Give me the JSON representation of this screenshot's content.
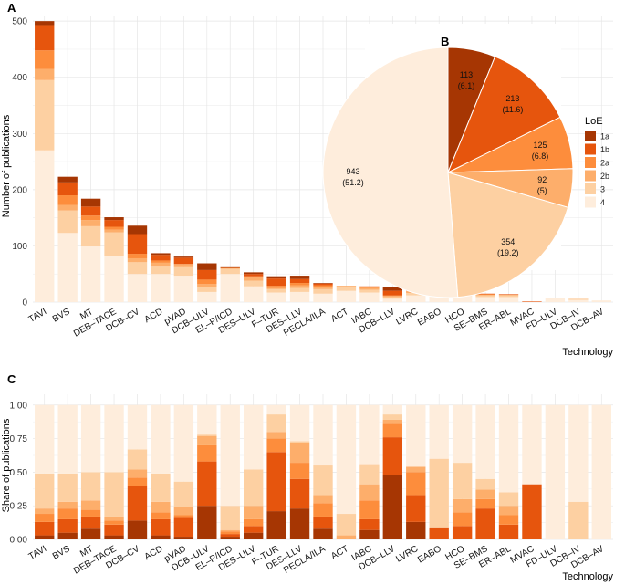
{
  "colors": {
    "1a": "#a63603",
    "1b": "#e6550d",
    "2a": "#fd8d3c",
    "2b": "#fdae6b",
    "3": "#fdd0a2",
    "4": "#feeddc"
  },
  "chart_data": [
    {
      "panel": "A",
      "type": "bar",
      "stacked": true,
      "xlabel": "Technology",
      "ylabel": "Number of publications",
      "ylim": [
        0,
        510
      ],
      "yticks": [
        0,
        100,
        200,
        300,
        400,
        500
      ],
      "categories": [
        "TAVI",
        "BVS",
        "MT",
        "DEB–TACE",
        "DCB–CV",
        "ACD",
        "pVAD",
        "DCB–ULV",
        "EL–P/ICD",
        "DES–ULV",
        "F–TUR",
        "DES–LLV",
        "PECLA/ILA",
        "ACT",
        "IABC",
        "DCB–LLV",
        "LVRC",
        "EABO",
        "HCO",
        "SE–BMS",
        "ER–ABL",
        "MVAC",
        "FD–ULV",
        "DCB–IV",
        "DCB–AV"
      ],
      "series": [
        {
          "name": "4",
          "values": [
            270,
            123,
            99,
            82,
            50,
            50,
            47,
            18,
            50,
            28,
            17,
            18,
            15,
            20,
            17,
            6,
            12,
            10,
            11,
            9,
            9,
            0,
            7,
            4,
            3
          ]
        },
        {
          "name": "3",
          "values": [
            125,
            40,
            36,
            42,
            21,
            13,
            15,
            9,
            9,
            10,
            6,
            7,
            8,
            7,
            5,
            3,
            4,
            6,
            4,
            3,
            3,
            0,
            0,
            2,
            0
          ]
        },
        {
          "name": "2b",
          "values": [
            20,
            10,
            11,
            5,
            7,
            7,
            5,
            5,
            1,
            6,
            2,
            5,
            4,
            2,
            3,
            2,
            3,
            0,
            1,
            1,
            1,
            0,
            0,
            0,
            0
          ]
        },
        {
          "name": "2a",
          "values": [
            33,
            17,
            8,
            5,
            8,
            4,
            1,
            8,
            1,
            2,
            4,
            4,
            3,
            0,
            1,
            1,
            1,
            0,
            1,
            1,
            0,
            0,
            0,
            0,
            0
          ]
        },
        {
          "name": "1b",
          "values": [
            45,
            23,
            16,
            12,
            35,
            10,
            11,
            17,
            0,
            4,
            13,
            7,
            3,
            0,
            2,
            8,
            3,
            0,
            0,
            1,
            1,
            1,
            0,
            0,
            0
          ]
        },
        {
          "name": "1a",
          "values": [
            7,
            10,
            14,
            5,
            15,
            3,
            2,
            12,
            1,
            3,
            4,
            6,
            1,
            0,
            0,
            6,
            0,
            0,
            0,
            0,
            0,
            0,
            0,
            0,
            0
          ]
        }
      ]
    },
    {
      "panel": "B",
      "type": "pie",
      "slices": [
        {
          "name": "1a",
          "count": "113",
          "pct": "(6.1)",
          "value": 113
        },
        {
          "name": "1b",
          "count": "213",
          "pct": "(11.6)",
          "value": 213
        },
        {
          "name": "2a",
          "count": "125",
          "pct": "(6.8)",
          "value": 125
        },
        {
          "name": "2b",
          "count": "92",
          "pct": "(5)",
          "value": 92
        },
        {
          "name": "3",
          "count": "354",
          "pct": "(19.2)",
          "value": 354
        },
        {
          "name": "4",
          "count": "943",
          "pct": "(51.2)",
          "value": 943
        }
      ]
    },
    {
      "panel": "C",
      "type": "bar",
      "stacked": true,
      "xlabel": "Technology",
      "ylabel": "Share of publications",
      "ylim": [
        0,
        1.08
      ],
      "yticks": [
        0,
        0.25,
        0.5,
        0.75,
        1.0
      ],
      "ytick_labels": [
        "0.00",
        "0.25",
        "0.50",
        "0.75",
        "1.00"
      ],
      "categories": [
        "TAVI",
        "BVS",
        "MT",
        "DEB–TACE",
        "DCB–CV",
        "ACD",
        "pVAD",
        "DCB–ULV",
        "EL–P/ICD",
        "DES–ULV",
        "F–TUR",
        "DES–LLV",
        "PECLA/ILA",
        "ACT",
        "IABC",
        "DCB–LLV",
        "LVRC",
        "EABO",
        "HCO",
        "SE–BMS",
        "ER–ABL",
        "MVAC",
        "FD–ULV",
        "DCB–IV",
        "DCB–AV"
      ],
      "series": [
        {
          "name": "1a",
          "values": [
            0.03,
            0.05,
            0.08,
            0.03,
            0.14,
            0.03,
            0.02,
            0.25,
            0.02,
            0.05,
            0.21,
            0.23,
            0.08,
            0,
            0.07,
            0.48,
            0.13,
            0,
            0,
            0,
            0,
            0,
            0,
            0,
            0
          ]
        },
        {
          "name": "1b",
          "values": [
            0.1,
            0.1,
            0.09,
            0.08,
            0.26,
            0.12,
            0.14,
            0.33,
            0.02,
            0.05,
            0.44,
            0.22,
            0.09,
            0,
            0.08,
            0.28,
            0.2,
            0.09,
            0.1,
            0.23,
            0.11,
            0.41,
            0,
            0,
            0
          ]
        },
        {
          "name": "2a",
          "values": [
            0.06,
            0.08,
            0.05,
            0.03,
            0.06,
            0.05,
            0.02,
            0.12,
            0.02,
            0.05,
            0.1,
            0.12,
            0.1,
            0,
            0.14,
            0.1,
            0.17,
            0,
            0.1,
            0.07,
            0.07,
            0,
            0,
            0,
            0
          ]
        },
        {
          "name": "2b",
          "values": [
            0.04,
            0.05,
            0.07,
            0.03,
            0.06,
            0.08,
            0.06,
            0.07,
            0.01,
            0.1,
            0.05,
            0.15,
            0.06,
            0.03,
            0.12,
            0.03,
            0.04,
            0,
            0.1,
            0.07,
            0.07,
            0,
            0,
            0,
            0
          ]
        },
        {
          "name": "3",
          "values": [
            0.26,
            0.21,
            0.21,
            0.33,
            0.15,
            0.21,
            0.19,
            0.01,
            0.18,
            0.27,
            0.13,
            0.01,
            0.22,
            0.16,
            0.15,
            0.04,
            0,
            0.51,
            0.27,
            0.08,
            0.1,
            0,
            0,
            0.28,
            0
          ]
        },
        {
          "name": "4",
          "values": [
            0.51,
            0.51,
            0.5,
            0.5,
            0.33,
            0.51,
            0.57,
            0.22,
            0.75,
            0.48,
            0.07,
            0.27,
            0.45,
            0.81,
            0.44,
            0.07,
            0.46,
            0.4,
            0.43,
            0.55,
            0.65,
            0.59,
            1.0,
            0.72,
            1.0
          ]
        }
      ]
    }
  ],
  "legend": {
    "title": "LoE",
    "items": [
      "1a",
      "1b",
      "2a",
      "2b",
      "3",
      "4"
    ]
  }
}
